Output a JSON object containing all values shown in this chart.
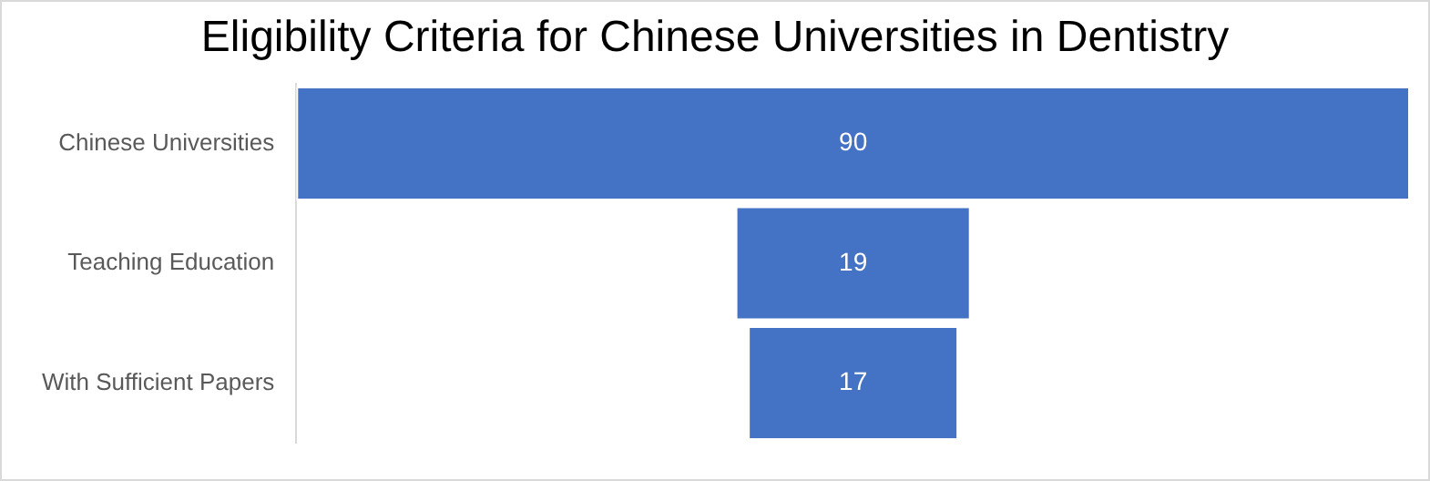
{
  "chart_data": {
    "type": "other",
    "title": "Eligibility Criteria for Chinese Universities in Dentistry",
    "categories": [
      "Chinese Universities",
      "Teaching Education",
      "With Sufficient Papers"
    ],
    "values": [
      90,
      19,
      17
    ],
    "color": "#4472c4",
    "data_labels": true
  }
}
